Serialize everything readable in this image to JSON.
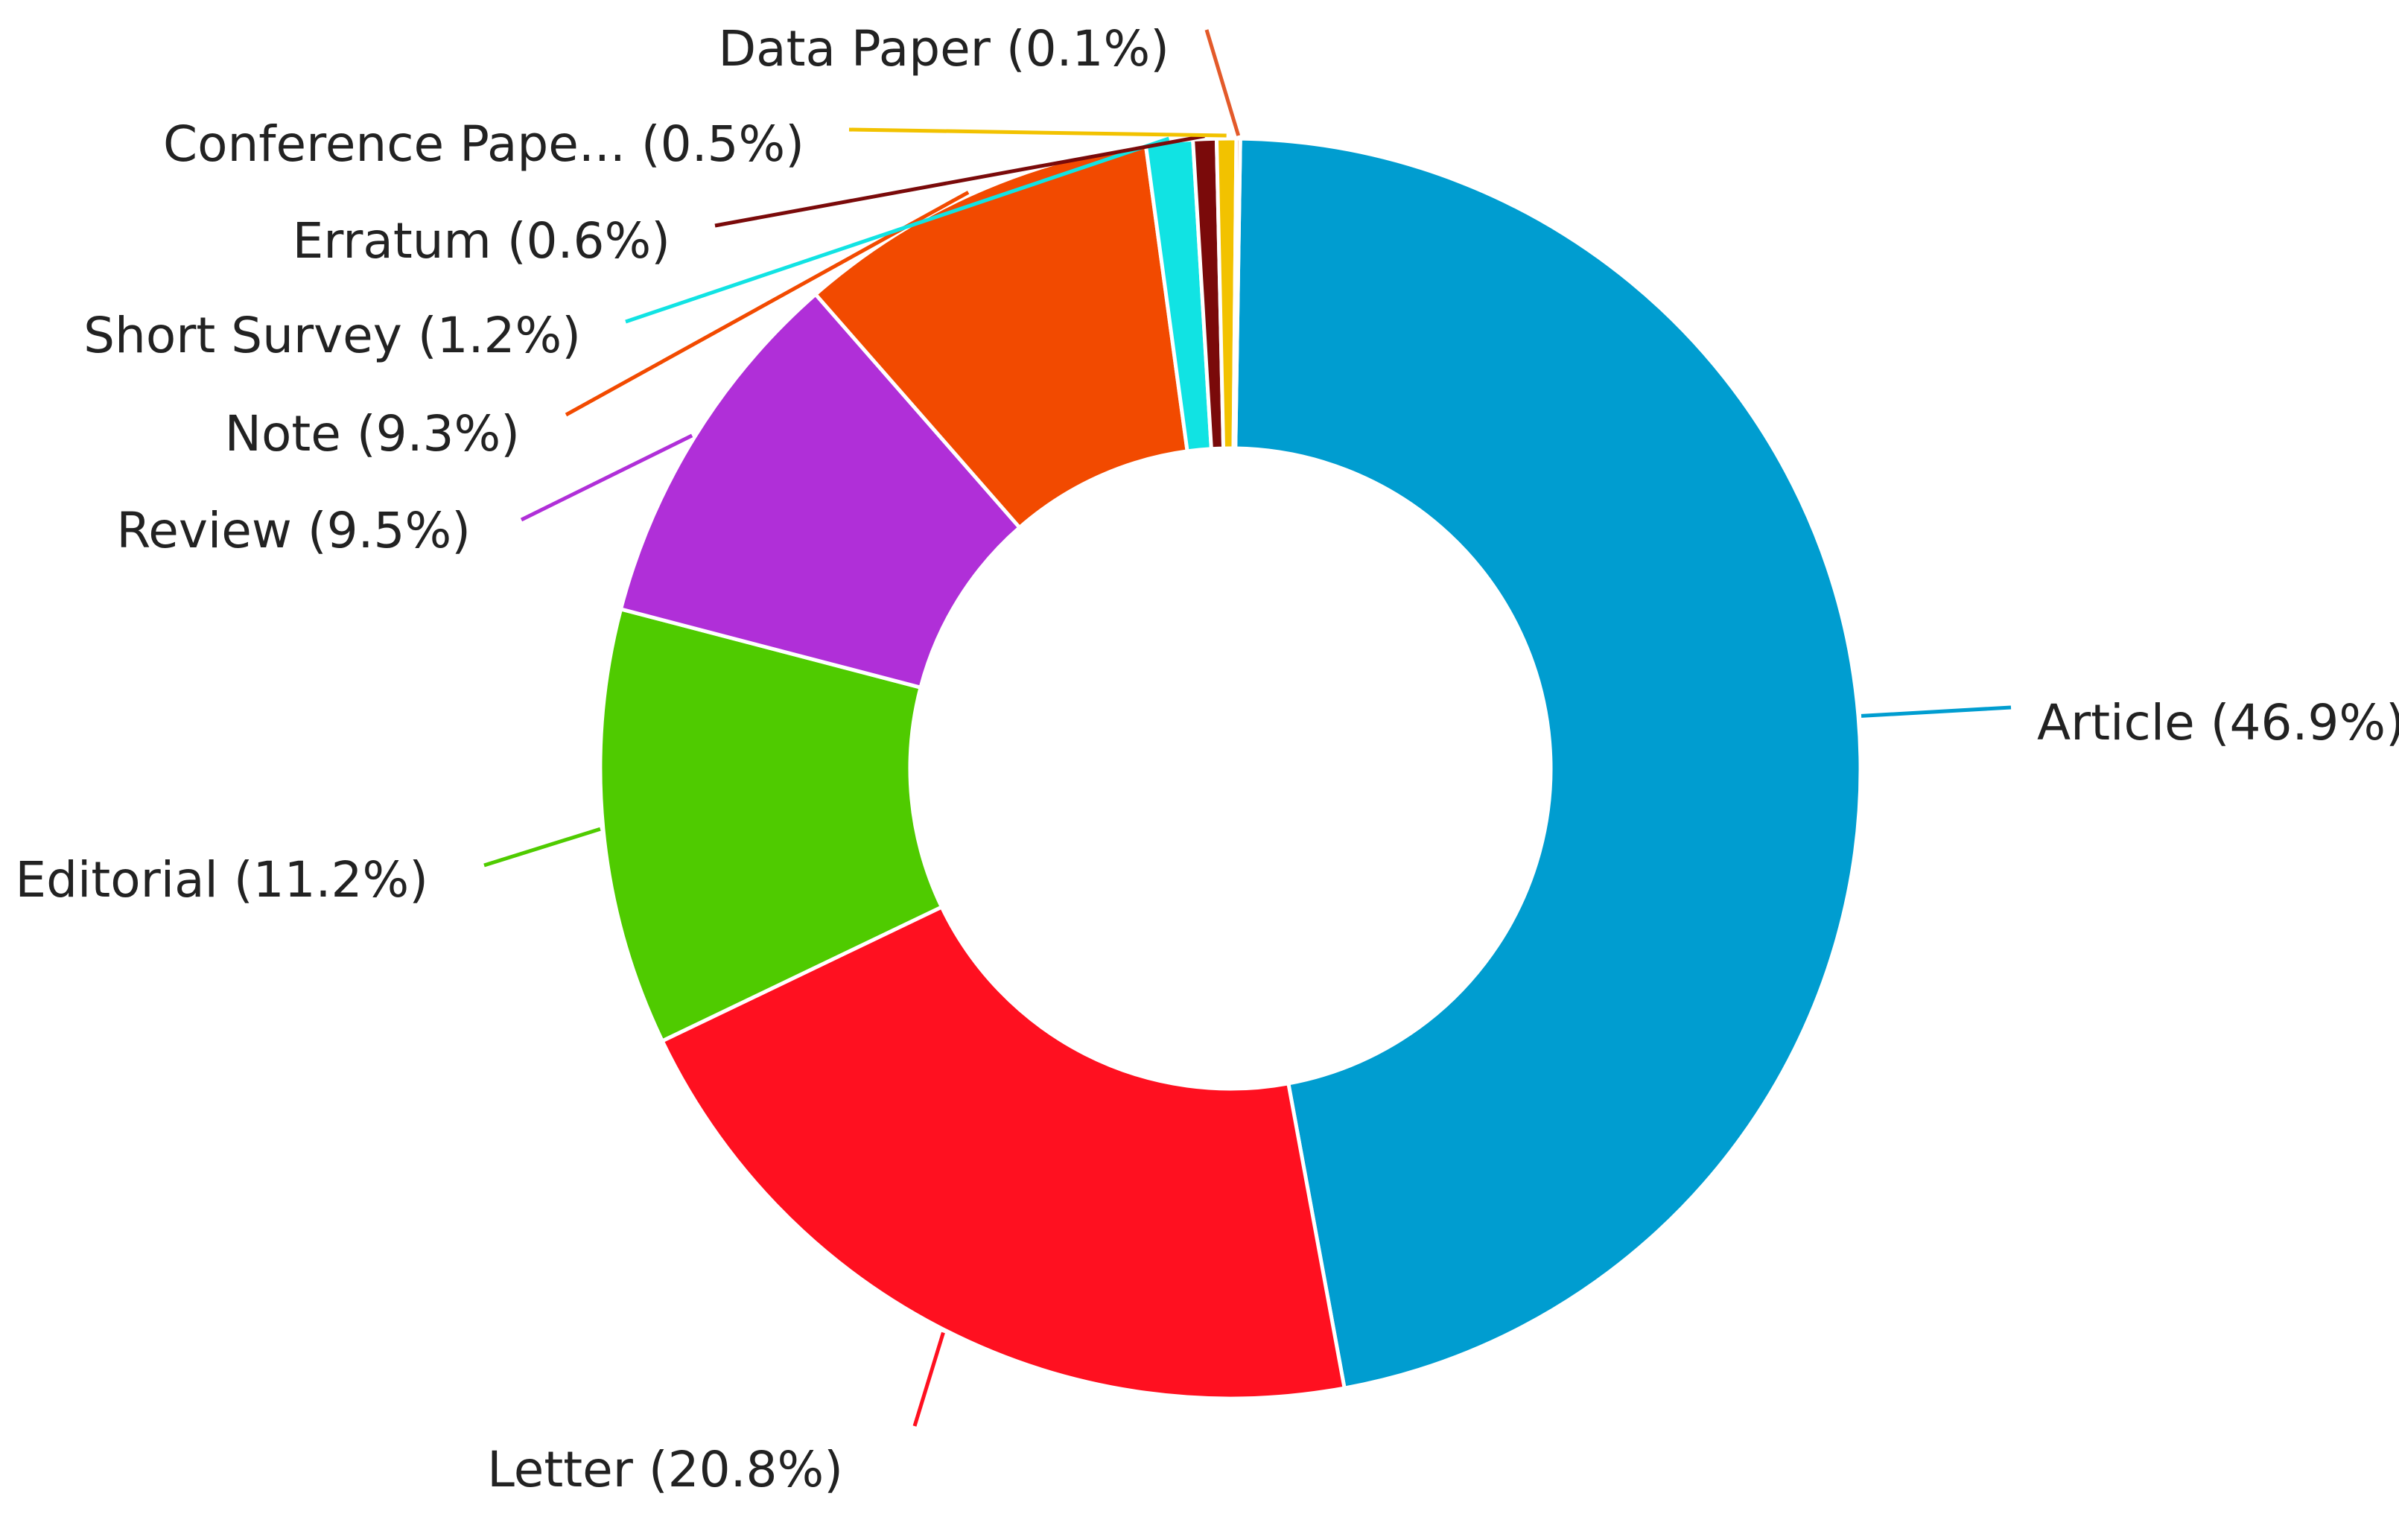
{
  "chart_data": {
    "type": "pie",
    "variant": "donut",
    "title": "",
    "legend": "none",
    "slices": [
      {
        "label": "Article (46.9%)",
        "category": "Article",
        "value": 46.9,
        "color": "#009DD0"
      },
      {
        "label": "Letter (20.8%)",
        "category": "Letter",
        "value": 20.8,
        "color": "#FF1020"
      },
      {
        "label": "Editorial (11.2%)",
        "category": "Editorial",
        "value": 11.2,
        "color": "#4FCB00"
      },
      {
        "label": "Review (9.5%)",
        "category": "Review",
        "value": 9.5,
        "color": "#B02FD8"
      },
      {
        "label": "Note (9.3%)",
        "category": "Note",
        "value": 9.3,
        "color": "#F24A00"
      },
      {
        "label": "Short Survey (1.2%)",
        "category": "Short Survey",
        "value": 1.2,
        "color": "#11E3E3"
      },
      {
        "label": "Erratum (0.6%)",
        "category": "Erratum",
        "value": 0.6,
        "color": "#7A0A0A"
      },
      {
        "label": "Conference Pape... (0.5%)",
        "category": "Conference Pape...",
        "value": 0.5,
        "color": "#F2C200"
      },
      {
        "label": "Data Paper (0.1%)",
        "category": "Data Paper",
        "value": 0.1,
        "color": "#E35A2A"
      }
    ]
  }
}
